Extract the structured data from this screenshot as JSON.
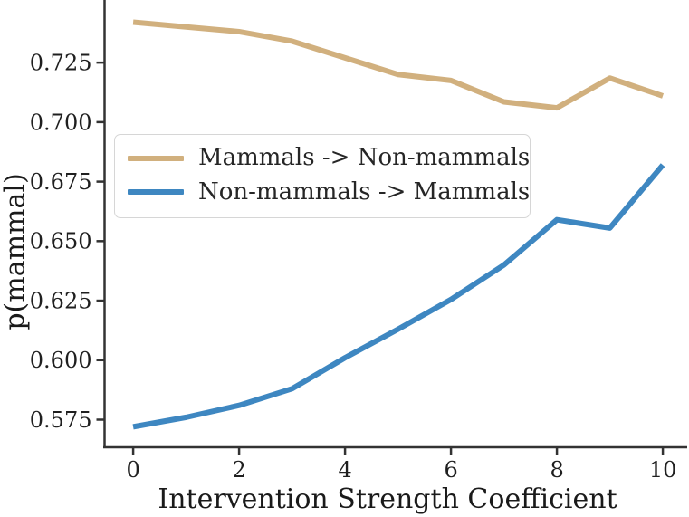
{
  "chart_data": {
    "type": "line",
    "title": "",
    "xlabel": "Intervention Strength Coefficient",
    "ylabel": "p(mammal)",
    "x": [
      0,
      1,
      2,
      3,
      4,
      5,
      6,
      7,
      8,
      9,
      10
    ],
    "series": [
      {
        "name": "Mammals -> Non-mammals",
        "color": "#d1b07e",
        "values": [
          0.742,
          0.74,
          0.738,
          0.734,
          0.727,
          0.72,
          0.7175,
          0.7085,
          0.706,
          0.7185,
          0.711
        ]
      },
      {
        "name": "Non-mammals -> Mammals",
        "color": "#3e87c1",
        "values": [
          0.572,
          0.576,
          0.581,
          0.588,
          0.601,
          0.613,
          0.6255,
          0.64,
          0.659,
          0.6555,
          0.682
        ]
      }
    ],
    "xticks": [
      0,
      2,
      4,
      6,
      8,
      10
    ],
    "yticks": [
      0.575,
      0.6,
      0.625,
      0.65,
      0.675,
      0.7,
      0.725
    ],
    "xlim": [
      -0.54,
      10.46
    ],
    "ylim": [
      0.5634,
      0.7513
    ],
    "grid": false,
    "legend_position": "upper-left-inside"
  },
  "style_colors": {
    "axis": "#333333",
    "tick_text": "#1f1f1f"
  }
}
